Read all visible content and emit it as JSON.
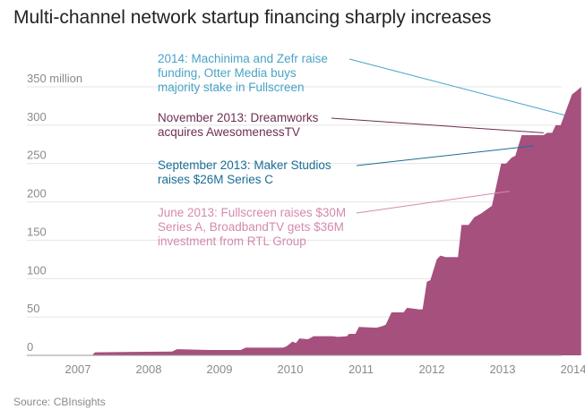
{
  "title": "Multi-channel network startup financing sharply increases",
  "source": "Source: CBInsights",
  "colors": {
    "area": "#a6507e",
    "grid": "#e4e4e4",
    "tick": "#8a8a8a"
  },
  "chart_data": {
    "type": "area",
    "title": "Multi-channel network startup financing sharply increases",
    "xlabel": "",
    "ylabel": "",
    "ylim": [
      0,
      350
    ],
    "xlim": [
      2007,
      2014.15
    ],
    "yticks": [
      {
        "value": 0,
        "label": "0"
      },
      {
        "value": 50,
        "label": "50"
      },
      {
        "value": 100,
        "label": "100"
      },
      {
        "value": 150,
        "label": "150"
      },
      {
        "value": 200,
        "label": "200"
      },
      {
        "value": 250,
        "label": "250"
      },
      {
        "value": 300,
        "label": "300"
      },
      {
        "value": 350,
        "label": "350 million"
      }
    ],
    "xticks": [
      {
        "value": 2007,
        "label": "2007"
      },
      {
        "value": 2008,
        "label": "2008"
      },
      {
        "value": 2009,
        "label": "2009"
      },
      {
        "value": 2010,
        "label": "2010"
      },
      {
        "value": 2011,
        "label": "2011"
      },
      {
        "value": 2012,
        "label": "2012"
      },
      {
        "value": 2013,
        "label": "2013"
      },
      {
        "value": 2014,
        "label": "2014"
      }
    ],
    "grid": true,
    "series": [
      {
        "x": [
          2007.1,
          2007.2,
          2007.24,
          2008.33,
          2008.4,
          2008.85,
          2009.3,
          2009.37,
          2009.9,
          2009.95,
          2010.03,
          2010.08,
          2010.13,
          2010.25,
          2010.33,
          2010.6,
          2010.67,
          2010.8,
          2010.83,
          2010.92,
          2010.97,
          2011.22,
          2011.3,
          2011.35,
          2011.43,
          2011.6,
          2011.65,
          2011.82,
          2011.87,
          2011.93,
          2011.98,
          2012.07,
          2012.12,
          2012.2,
          2012.37,
          2012.42,
          2012.52,
          2012.6,
          2012.7,
          2012.85,
          2012.98,
          2013.05,
          2013.13,
          2013.18,
          2013.27,
          2013.33,
          2013.45,
          2013.58,
          2013.63,
          2013.7,
          2013.75,
          2013.82,
          2013.9,
          2013.98,
          2014.05,
          2014.11
        ],
        "y": [
          0,
          0,
          4,
          5,
          8,
          7,
          7,
          10,
          10,
          12,
          18,
          16,
          22,
          21,
          25,
          25,
          24,
          25,
          28,
          28,
          37,
          36,
          38,
          40,
          56,
          56,
          62,
          60,
          60,
          96,
          98,
          125,
          130,
          128,
          128,
          170,
          170,
          180,
          185,
          195,
          250,
          250,
          258,
          260,
          287,
          287,
          287,
          287,
          290,
          290,
          300,
          300,
          320,
          340,
          345,
          350
        ]
      }
    ],
    "annotations": [
      {
        "lines": [
          "2014: Machinima and Zefr raise",
          "funding, Otter Media buys",
          "majority stake in Fullscreen"
        ],
        "color": "#4aa3c7",
        "point": [
          2013.88,
          313
        ]
      },
      {
        "lines": [
          "November 2013: Dreamworks",
          "acquires AwesomenessTV"
        ],
        "color": "#6e2e52",
        "point": [
          2013.58,
          290
        ]
      },
      {
        "lines": [
          "September 2013: Maker Studios",
          "raises $26M Series C"
        ],
        "color": "#1a6e96",
        "point": [
          2013.43,
          273
        ]
      },
      {
        "lines": [
          "June 2013: Fullscreen raises $30M",
          "Series A, BroadbandTV gets $36M",
          "investment from RTL Group"
        ],
        "color": "#d48aae",
        "point": [
          2013.1,
          214
        ]
      }
    ]
  }
}
